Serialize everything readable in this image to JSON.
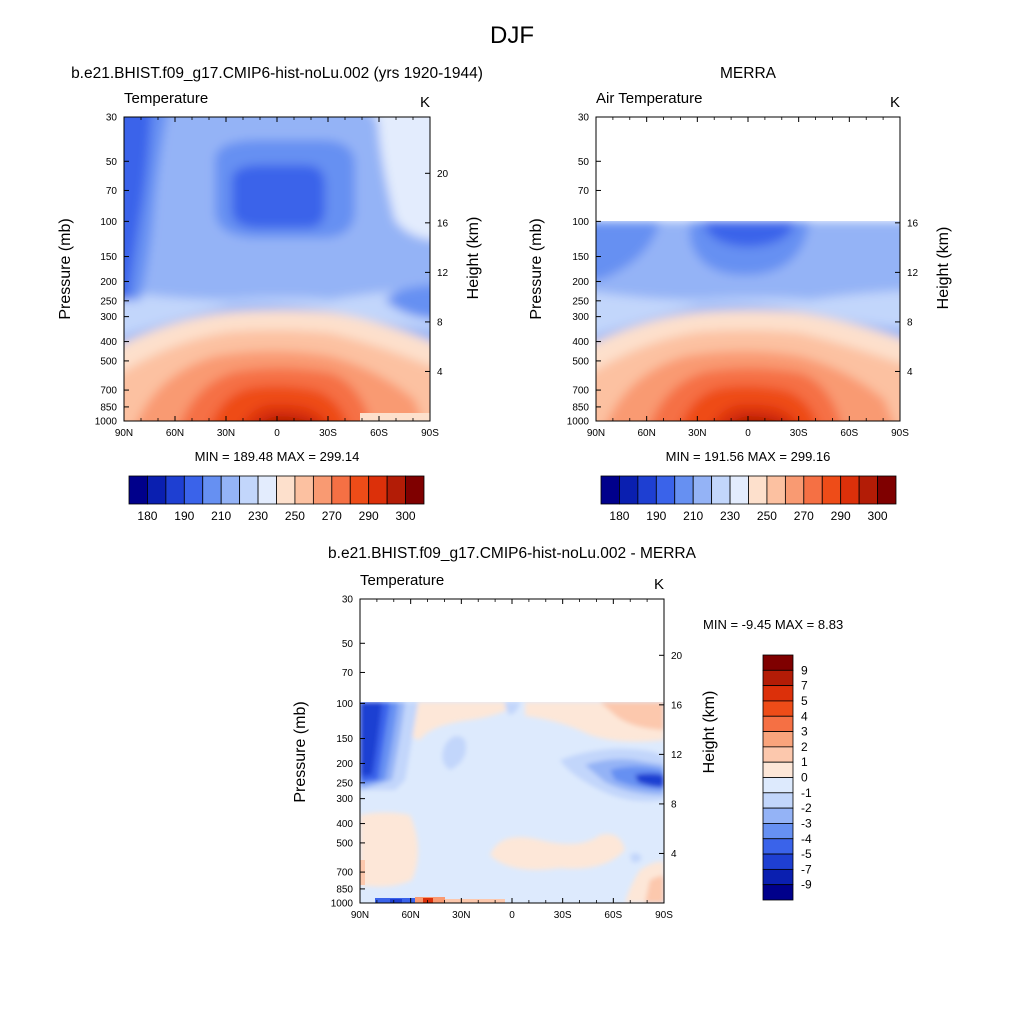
{
  "title": "DJF",
  "colors": {
    "abs_scale": [
      "#00008b",
      "#0a1fb0",
      "#1e3fd2",
      "#3a63ea",
      "#6690f2",
      "#94b3f6",
      "#c2d6fb",
      "#e3ecfd",
      "#fde0cc",
      "#fcc1a1",
      "#f99a72",
      "#f57044",
      "#ee4c18",
      "#dc300a",
      "#b31c06",
      "#7f0000"
    ],
    "diff_scale": [
      "#00008b",
      "#0a1fb0",
      "#1e3fd2",
      "#3a63ea",
      "#6690f2",
      "#94b3f6",
      "#c2d6fb",
      "#ddeafd",
      "#fde7d8",
      "#fcc8ad",
      "#f9a47c",
      "#f57044",
      "#ee4c18",
      "#dc300a",
      "#b31c06",
      "#7f0000"
    ]
  },
  "chart_data": [
    {
      "type": "heatmap",
      "title": "b.e21.BHIST.f09_g17.CMIP6-hist-noLu.002 (yrs 1920-1944)",
      "subtitle_left": "Temperature",
      "subtitle_right": "K",
      "ylabel": "Pressure (mb)",
      "y2label": "Height (km)",
      "x_ticks": [
        "90N",
        "60N",
        "30N",
        "0",
        "30S",
        "60S",
        "90S"
      ],
      "y_ticks": [
        "30",
        "50",
        "70",
        "100",
        "150",
        "200",
        "250",
        "300",
        "400",
        "500",
        "700",
        "850",
        "1000"
      ],
      "y2_ticks": [
        "20",
        "16",
        "12",
        "8",
        "4"
      ],
      "minmax": "MIN = 189.48  MAX = 299.14",
      "colorbar_labels": [
        "180",
        "190",
        "210",
        "230",
        "250",
        "270",
        "290",
        "300"
      ],
      "min": 189.48,
      "max": 299.14
    },
    {
      "type": "heatmap",
      "title": "MERRA",
      "subtitle_left": "Air Temperature",
      "subtitle_right": "K",
      "ylabel": "Pressure (mb)",
      "y2label": "Height (km)",
      "x_ticks": [
        "90N",
        "60N",
        "30N",
        "0",
        "30S",
        "60S",
        "90S"
      ],
      "y_ticks": [
        "30",
        "50",
        "70",
        "100",
        "150",
        "200",
        "250",
        "300",
        "400",
        "500",
        "700",
        "850",
        "1000"
      ],
      "y2_ticks": [
        "16",
        "12",
        "8",
        "4"
      ],
      "minmax": "MIN = 191.56  MAX = 299.16",
      "colorbar_labels": [
        "180",
        "190",
        "210",
        "230",
        "250",
        "270",
        "290",
        "300"
      ],
      "min": 191.56,
      "max": 299.16
    },
    {
      "type": "heatmap",
      "title": "b.e21.BHIST.f09_g17.CMIP6-hist-noLu.002 - MERRA",
      "subtitle_left": "Temperature",
      "subtitle_right": "K",
      "ylabel": "Pressure (mb)",
      "y2label": "Height (km)",
      "x_ticks": [
        "90N",
        "60N",
        "30N",
        "0",
        "30S",
        "60S",
        "90S"
      ],
      "y_ticks": [
        "30",
        "50",
        "70",
        "100",
        "150",
        "200",
        "250",
        "300",
        "400",
        "500",
        "700",
        "850",
        "1000"
      ],
      "y2_ticks": [
        "20",
        "16",
        "12",
        "8",
        "4"
      ],
      "minmax": "MIN =  -9.45  MAX =   8.83",
      "colorbar_labels": [
        "9",
        "7",
        "5",
        "4",
        "3",
        "2",
        "1",
        "0",
        "-1",
        "-2",
        "-3",
        "-4",
        "-5",
        "-7",
        "-9"
      ],
      "min": -9.45,
      "max": 8.83
    }
  ]
}
